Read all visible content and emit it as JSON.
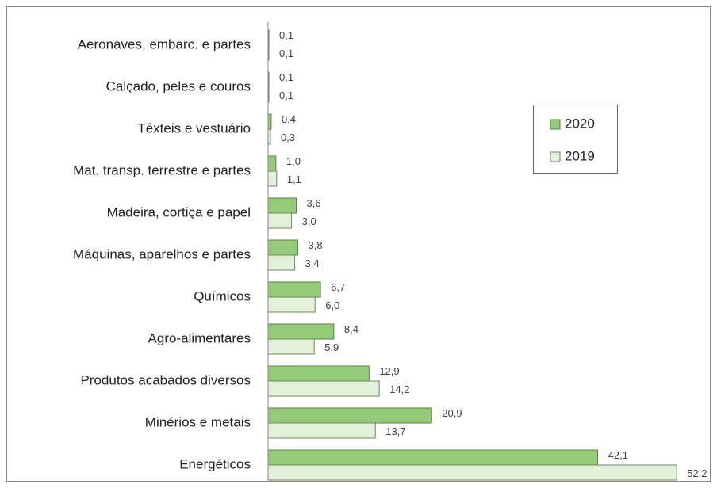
{
  "chart_data": {
    "type": "bar",
    "orientation": "horizontal",
    "categories": [
      "Aeronaves, embarc. e partes",
      "Calçado, peles e couros",
      "Têxteis e vestuário",
      "Mat. transp. terrestre e partes",
      "Madeira, cortiça e papel",
      "Máquinas, aparelhos e partes",
      "Químicos",
      "Agro-alimentares",
      "Produtos acabados diversos",
      "Minérios e metais",
      "Energéticos"
    ],
    "series": [
      {
        "name": "2020",
        "color": "#95cb78",
        "values": [
          0.1,
          0.1,
          0.4,
          1.0,
          3.6,
          3.8,
          6.7,
          8.4,
          12.9,
          20.9,
          42.1
        ],
        "value_labels": [
          "0,1",
          "0,1",
          "0,4",
          "1,0",
          "3,6",
          "3,8",
          "6,7",
          "8,4",
          "12,9",
          "20,9",
          "42,1"
        ]
      },
      {
        "name": "2019",
        "color": "#e3f0da",
        "values": [
          0.1,
          0.1,
          0.3,
          1.1,
          3.0,
          3.4,
          6.0,
          5.9,
          14.2,
          13.7,
          52.2
        ],
        "value_labels": [
          "0,1",
          "0,1",
          "0,3",
          "1,1",
          "3,0",
          "3,4",
          "6,0",
          "5,9",
          "14,2",
          "13,7",
          "52,2"
        ]
      }
    ],
    "legend": "right"
  }
}
